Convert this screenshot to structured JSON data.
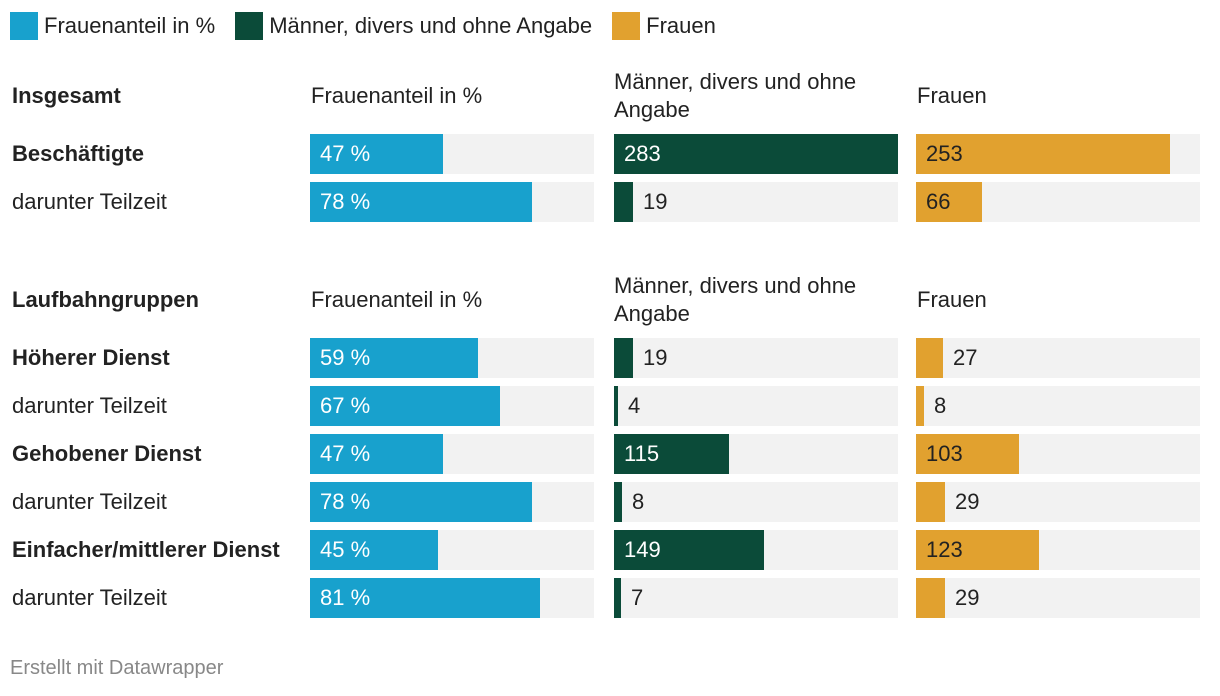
{
  "legend": [
    {
      "label": "Frauenanteil in %",
      "color": "#18a1cd"
    },
    {
      "label": "Männer, divers und ohne Angabe",
      "color": "#0b4b39"
    },
    {
      "label": "Frauen",
      "color": "#e1a12f"
    }
  ],
  "chart_data": {
    "type": "bar",
    "series": [
      {
        "name": "Frauenanteil in %",
        "color": "#18a1cd",
        "max": 100,
        "suffix": " %"
      },
      {
        "name": "Männer, divers und ohne Angabe",
        "color": "#0b4b39",
        "max": 283,
        "suffix": ""
      },
      {
        "name": "Frauen",
        "color": "#e1a12f",
        "max": 283,
        "suffix": ""
      }
    ],
    "sections": [
      {
        "title": "Insgesamt",
        "headers": [
          "Frauenanteil in %",
          "Männer, divers und ohne Angabe",
          "Frauen"
        ],
        "rows": [
          {
            "label": "Beschäftigte",
            "bold": true,
            "values": [
              47,
              283,
              253
            ]
          },
          {
            "label": "darunter Teilzeit",
            "bold": false,
            "values": [
              78,
              19,
              66
            ]
          }
        ]
      },
      {
        "title": "Laufbahngruppen",
        "headers": [
          "Frauenanteil in %",
          "Männer, divers und ohne Angabe",
          "Frauen"
        ],
        "rows": [
          {
            "label": "Höherer Dienst",
            "bold": true,
            "values": [
              59,
              19,
              27
            ]
          },
          {
            "label": "darunter Teilzeit",
            "bold": false,
            "values": [
              67,
              4,
              8
            ]
          },
          {
            "label": "Gehobener Dienst",
            "bold": true,
            "values": [
              47,
              115,
              103
            ]
          },
          {
            "label": "darunter Teilzeit",
            "bold": false,
            "values": [
              78,
              8,
              29
            ]
          },
          {
            "label": "Einfacher/mittlerer Dienst",
            "bold": true,
            "values": [
              45,
              149,
              123
            ]
          },
          {
            "label": "darunter Teilzeit",
            "bold": false,
            "values": [
              81,
              7,
              29
            ]
          }
        ]
      }
    ]
  },
  "footer": "Erstellt mit Datawrapper"
}
